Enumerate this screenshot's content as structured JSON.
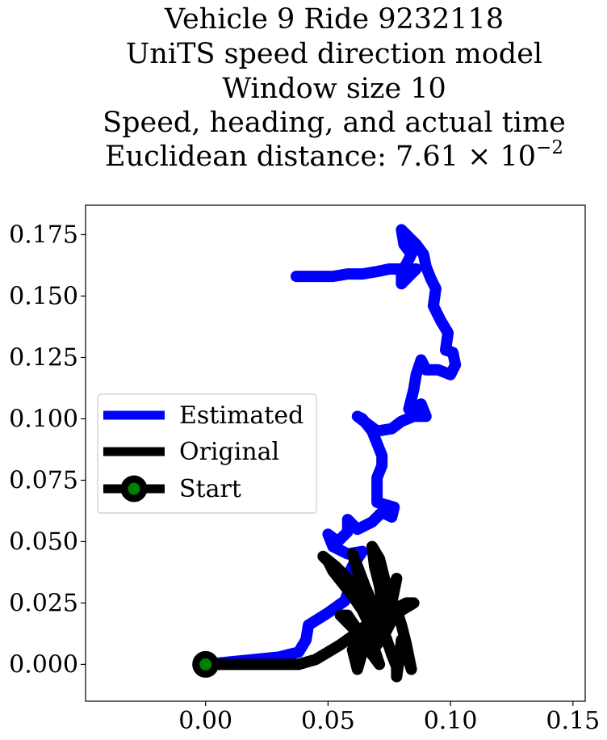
{
  "chart_data": {
    "type": "line",
    "title_lines": [
      "Vehicle 9 Ride 9232118",
      "UniTS speed direction model",
      "Window size 10",
      "Speed, heading, and actual time",
      "Euclidean distance: 7.61 × 10"
    ],
    "title_exponent": "−2",
    "xlabel": "",
    "ylabel": "",
    "xlim": [
      -0.049,
      0.155
    ],
    "ylim": [
      -0.015,
      0.187
    ],
    "xticks": [
      0.0,
      0.05,
      0.1,
      0.15
    ],
    "xtick_labels": [
      "0.00",
      "0.05",
      "0.10",
      "0.15"
    ],
    "yticks": [
      0.0,
      0.025,
      0.05,
      0.075,
      0.1,
      0.125,
      0.15,
      0.175
    ],
    "ytick_labels": [
      "0.000",
      "0.025",
      "0.050",
      "0.075",
      "0.100",
      "0.125",
      "0.150",
      "0.175"
    ],
    "grid": false,
    "legend_position": "center-left",
    "series": [
      {
        "name": "Estimated",
        "color": "#0000ff",
        "points": [
          [
            0.0,
            0.0
          ],
          [
            0.01,
            0.001
          ],
          [
            0.02,
            0.002
          ],
          [
            0.03,
            0.003
          ],
          [
            0.038,
            0.005
          ],
          [
            0.041,
            0.01
          ],
          [
            0.042,
            0.016
          ],
          [
            0.05,
            0.021
          ],
          [
            0.057,
            0.026
          ],
          [
            0.059,
            0.032
          ],
          [
            0.058,
            0.036
          ],
          [
            0.06,
            0.04
          ],
          [
            0.064,
            0.046
          ],
          [
            0.058,
            0.045
          ],
          [
            0.052,
            0.048
          ],
          [
            0.05,
            0.053
          ],
          [
            0.054,
            0.05
          ],
          [
            0.058,
            0.054
          ],
          [
            0.058,
            0.059
          ],
          [
            0.062,
            0.055
          ],
          [
            0.068,
            0.058
          ],
          [
            0.072,
            0.062
          ],
          [
            0.076,
            0.06
          ],
          [
            0.077,
            0.064
          ],
          [
            0.07,
            0.066
          ],
          [
            0.07,
            0.071
          ],
          [
            0.07,
            0.076
          ],
          [
            0.072,
            0.081
          ],
          [
            0.072,
            0.085
          ],
          [
            0.07,
            0.09
          ],
          [
            0.068,
            0.095
          ],
          [
            0.064,
            0.1
          ],
          [
            0.062,
            0.101
          ],
          [
            0.066,
            0.098
          ],
          [
            0.07,
            0.095
          ],
          [
            0.076,
            0.096
          ],
          [
            0.08,
            0.099
          ],
          [
            0.085,
            0.101
          ],
          [
            0.09,
            0.101
          ],
          [
            0.088,
            0.106
          ],
          [
            0.083,
            0.104
          ],
          [
            0.085,
            0.112
          ],
          [
            0.086,
            0.118
          ],
          [
            0.088,
            0.124
          ],
          [
            0.09,
            0.12
          ],
          [
            0.095,
            0.12
          ],
          [
            0.1,
            0.118
          ],
          [
            0.102,
            0.122
          ],
          [
            0.101,
            0.127
          ],
          [
            0.098,
            0.128
          ],
          [
            0.099,
            0.135
          ],
          [
            0.096,
            0.14
          ],
          [
            0.093,
            0.146
          ],
          [
            0.094,
            0.153
          ],
          [
            0.092,
            0.157
          ],
          [
            0.09,
            0.162
          ],
          [
            0.089,
            0.167
          ],
          [
            0.086,
            0.171
          ],
          [
            0.08,
            0.177
          ],
          [
            0.081,
            0.171
          ],
          [
            0.084,
            0.167
          ],
          [
            0.082,
            0.163
          ],
          [
            0.08,
            0.16
          ],
          [
            0.08,
            0.155
          ],
          [
            0.083,
            0.158
          ],
          [
            0.086,
            0.161
          ],
          [
            0.08,
            0.161
          ],
          [
            0.075,
            0.161
          ],
          [
            0.07,
            0.16
          ],
          [
            0.064,
            0.159
          ],
          [
            0.058,
            0.159
          ],
          [
            0.052,
            0.158
          ],
          [
            0.046,
            0.158
          ],
          [
            0.042,
            0.158
          ],
          [
            0.037,
            0.158
          ]
        ]
      },
      {
        "name": "Original",
        "color": "#000000",
        "points": [
          [
            0.0,
            0.0
          ],
          [
            0.01,
            0.0
          ],
          [
            0.02,
            0.0
          ],
          [
            0.03,
            0.0
          ],
          [
            0.038,
            0.0
          ],
          [
            0.045,
            0.002
          ],
          [
            0.05,
            0.005
          ],
          [
            0.055,
            0.008
          ],
          [
            0.062,
            0.013
          ],
          [
            0.068,
            0.018
          ],
          [
            0.072,
            0.015
          ],
          [
            0.074,
            0.01
          ],
          [
            0.076,
            0.004
          ],
          [
            0.078,
            -0.001
          ],
          [
            0.078,
            -0.005
          ],
          [
            0.079,
            0.002
          ],
          [
            0.08,
            0.01
          ],
          [
            0.082,
            0.005
          ],
          [
            0.084,
            -0.002
          ],
          [
            0.082,
            0.008
          ],
          [
            0.08,
            0.016
          ],
          [
            0.078,
            0.022
          ],
          [
            0.075,
            0.028
          ],
          [
            0.073,
            0.035
          ],
          [
            0.071,
            0.043
          ],
          [
            0.068,
            0.048
          ],
          [
            0.069,
            0.04
          ],
          [
            0.071,
            0.032
          ],
          [
            0.072,
            0.025
          ],
          [
            0.071,
            0.018
          ],
          [
            0.068,
            0.025
          ],
          [
            0.065,
            0.032
          ],
          [
            0.062,
            0.04
          ],
          [
            0.06,
            0.045
          ],
          [
            0.062,
            0.038
          ],
          [
            0.064,
            0.03
          ],
          [
            0.066,
            0.022
          ],
          [
            0.066,
            0.015
          ],
          [
            0.063,
            0.01
          ],
          [
            0.06,
            0.006
          ],
          [
            0.062,
            -0.002
          ],
          [
            0.064,
            0.005
          ],
          [
            0.066,
            0.01
          ],
          [
            0.07,
            0.015
          ],
          [
            0.073,
            0.022
          ],
          [
            0.076,
            0.03
          ],
          [
            0.078,
            0.035
          ],
          [
            0.076,
            0.025
          ],
          [
            0.074,
            0.02
          ],
          [
            0.078,
            0.023
          ],
          [
            0.082,
            0.025
          ],
          [
            0.085,
            0.025
          ],
          [
            0.08,
            0.022
          ],
          [
            0.076,
            0.018
          ],
          [
            0.073,
            0.012
          ],
          [
            0.07,
            0.008
          ],
          [
            0.068,
            0.012
          ],
          [
            0.066,
            0.018
          ],
          [
            0.064,
            0.022
          ],
          [
            0.06,
            0.028
          ],
          [
            0.056,
            0.033
          ],
          [
            0.052,
            0.038
          ],
          [
            0.05,
            0.042
          ],
          [
            0.048,
            0.044
          ],
          [
            0.053,
            0.04
          ],
          [
            0.057,
            0.036
          ],
          [
            0.06,
            0.032
          ],
          [
            0.063,
            0.028
          ],
          [
            0.066,
            0.022
          ],
          [
            0.068,
            0.016
          ],
          [
            0.066,
            0.01
          ],
          [
            0.063,
            0.013
          ],
          [
            0.06,
            0.017
          ],
          [
            0.058,
            0.02
          ],
          [
            0.055,
            0.02
          ],
          [
            0.06,
            0.015
          ],
          [
            0.064,
            0.01
          ],
          [
            0.068,
            0.004
          ],
          [
            0.071,
            0.0
          ],
          [
            0.069,
            0.006
          ],
          [
            0.067,
            0.012
          ],
          [
            0.07,
            0.018
          ],
          [
            0.074,
            0.024
          ]
        ]
      }
    ],
    "start": {
      "name": "Start",
      "point": [
        0.0,
        0.0
      ],
      "edge_color": "#000000",
      "fill_color": "#008000"
    }
  }
}
